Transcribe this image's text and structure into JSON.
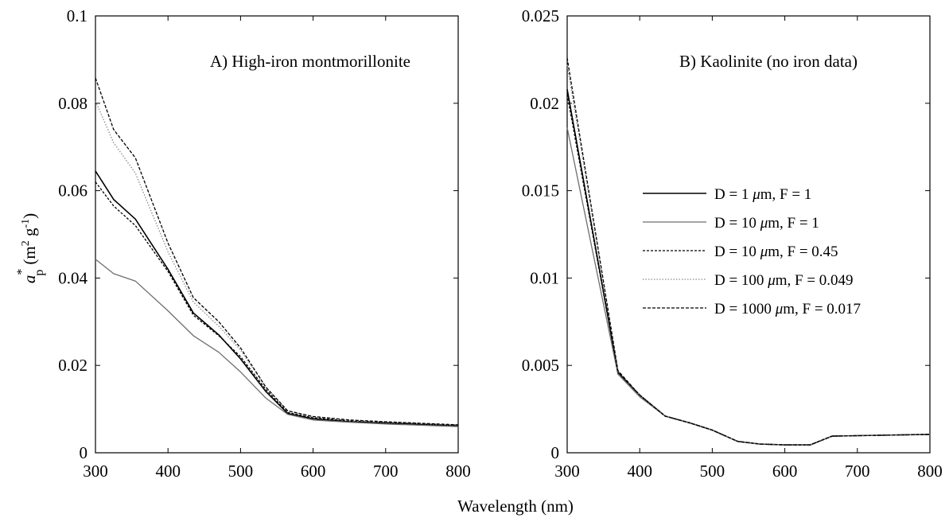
{
  "xlabel": "Wavelength (nm)",
  "ylabel": {
    "symbol": "a",
    "superscript": "*",
    "subscript": "p",
    "unit_open": "(m",
    "unit_exp1": "2",
    "unit_mid": " g",
    "unit_exp2": "-1",
    "unit_close": ")"
  },
  "legend_entries": [
    {
      "pre": "D = 1 ",
      "mu": "μ",
      "post": "m, F = 1",
      "color": "#000000",
      "dash": "solid",
      "width": 1.6
    },
    {
      "pre": "D = 10 ",
      "mu": "μ",
      "post": "m, F = 1",
      "color": "#6e6e6e",
      "dash": "solid",
      "width": 1.3
    },
    {
      "pre": "D = 10 ",
      "mu": "μ",
      "post": "m, F = 0.45",
      "color": "#000000",
      "dash": "3,2",
      "width": 1.3
    },
    {
      "pre": "D = 100 ",
      "mu": "μ",
      "post": "m, F = 0.049",
      "color": "#8a8a8a",
      "dash": "1.5,2",
      "width": 1.3
    },
    {
      "pre": "D = 1000 ",
      "mu": "μ",
      "post": "m, F = 0.017",
      "color": "#000000",
      "dash": "4,2",
      "width": 1.3
    }
  ],
  "chart_data": [
    {
      "type": "line",
      "title": "A) High-iron montmorillonite",
      "xlim": [
        300,
        800
      ],
      "ylim": [
        0,
        0.1
      ],
      "xticks": [
        "300",
        "400",
        "500",
        "600",
        "700",
        "800"
      ],
      "yticks": [
        "0",
        "0.02",
        "0.04",
        "0.06",
        "0.08",
        "0.1"
      ],
      "series": [
        {
          "name": "D = 1 μm, F = 1",
          "x": [
            300,
            325,
            355,
            400,
            435,
            470,
            500,
            535,
            565,
            600,
            650,
            700,
            800
          ],
          "y": [
            0.0645,
            0.058,
            0.0535,
            0.042,
            0.032,
            0.027,
            0.0215,
            0.014,
            0.009,
            0.0078,
            0.0071,
            0.0068,
            0.0062
          ]
        },
        {
          "name": "D = 10 μm, F = 1",
          "x": [
            300,
            325,
            355,
            400,
            435,
            470,
            500,
            535,
            565,
            600,
            650,
            700,
            800
          ],
          "y": [
            0.0443,
            0.041,
            0.0393,
            0.0325,
            0.0268,
            0.023,
            0.0185,
            0.0125,
            0.0088,
            0.0075,
            0.007,
            0.0066,
            0.006
          ]
        },
        {
          "name": "D = 10 μm, F = 0.45",
          "x": [
            300,
            325,
            355,
            400,
            435,
            470,
            500,
            535,
            565,
            600,
            650,
            700,
            800
          ],
          "y": [
            0.062,
            0.0565,
            0.052,
            0.0415,
            0.0315,
            0.0268,
            0.022,
            0.0145,
            0.0092,
            0.008,
            0.0073,
            0.0069,
            0.0063
          ]
        },
        {
          "name": "D = 100 μm, F = 0.049",
          "x": [
            300,
            325,
            355,
            400,
            435,
            470,
            500,
            535,
            565,
            600,
            650,
            700,
            800
          ],
          "y": [
            0.0805,
            0.071,
            0.064,
            0.046,
            0.0345,
            0.029,
            0.0235,
            0.015,
            0.0095,
            0.0082,
            0.0074,
            0.007,
            0.0063
          ]
        },
        {
          "name": "D = 1000 μm, F = 0.017",
          "x": [
            300,
            325,
            355,
            400,
            435,
            470,
            500,
            535,
            565,
            600,
            650,
            700,
            800
          ],
          "y": [
            0.0858,
            0.074,
            0.0675,
            0.048,
            0.0355,
            0.03,
            0.024,
            0.015,
            0.0096,
            0.0083,
            0.0075,
            0.0071,
            0.0064
          ]
        }
      ]
    },
    {
      "type": "line",
      "title": "B) Kaolinite (no iron data)",
      "xlim": [
        300,
        800
      ],
      "ylim": [
        0,
        0.025
      ],
      "xticks": [
        "300",
        "400",
        "500",
        "600",
        "700",
        "800"
      ],
      "yticks": [
        "0",
        "0.005",
        "0.01",
        "0.015",
        "0.02",
        "0.025"
      ],
      "series": [
        {
          "name": "D = 1 μm, F = 1",
          "x": [
            300,
            370,
            400,
            435,
            470,
            500,
            535,
            565,
            600,
            635,
            665,
            700,
            800
          ],
          "y": [
            0.0208,
            0.0046,
            0.0033,
            0.0021,
            0.0017,
            0.0013,
            0.00065,
            0.0005,
            0.00045,
            0.00045,
            0.00095,
            0.00098,
            0.00105
          ]
        },
        {
          "name": "D = 10 μm, F = 1",
          "x": [
            300,
            370,
            400,
            435,
            470,
            500,
            535,
            565,
            600,
            635,
            665,
            700,
            800
          ],
          "y": [
            0.0186,
            0.0045,
            0.0032,
            0.0021,
            0.0017,
            0.0013,
            0.00065,
            0.0005,
            0.00045,
            0.00045,
            0.00095,
            0.00098,
            0.00105
          ]
        },
        {
          "name": "D = 10 μm, F = 0.45",
          "x": [
            300,
            370,
            400,
            435,
            470,
            500,
            535,
            565,
            600,
            635,
            665,
            700,
            800
          ],
          "y": [
            0.0205,
            0.0046,
            0.0033,
            0.0021,
            0.0017,
            0.0013,
            0.00065,
            0.0005,
            0.00045,
            0.00045,
            0.00095,
            0.00098,
            0.00105
          ]
        },
        {
          "name": "D = 100 μm, F = 0.049",
          "x": [
            300,
            370,
            400,
            435,
            470,
            500,
            535,
            565,
            600,
            635,
            665,
            700,
            800
          ],
          "y": [
            0.0222,
            0.0047,
            0.0033,
            0.0021,
            0.0017,
            0.0013,
            0.00065,
            0.0005,
            0.00045,
            0.00045,
            0.00095,
            0.00098,
            0.00105
          ]
        },
        {
          "name": "D = 1000 μm, F = 0.017",
          "x": [
            300,
            370,
            400,
            435,
            470,
            500,
            535,
            565,
            600,
            635,
            665,
            700,
            800
          ],
          "y": [
            0.0226,
            0.0047,
            0.0033,
            0.0021,
            0.0017,
            0.0013,
            0.00065,
            0.0005,
            0.00045,
            0.00045,
            0.00095,
            0.00098,
            0.00105
          ]
        }
      ]
    }
  ]
}
